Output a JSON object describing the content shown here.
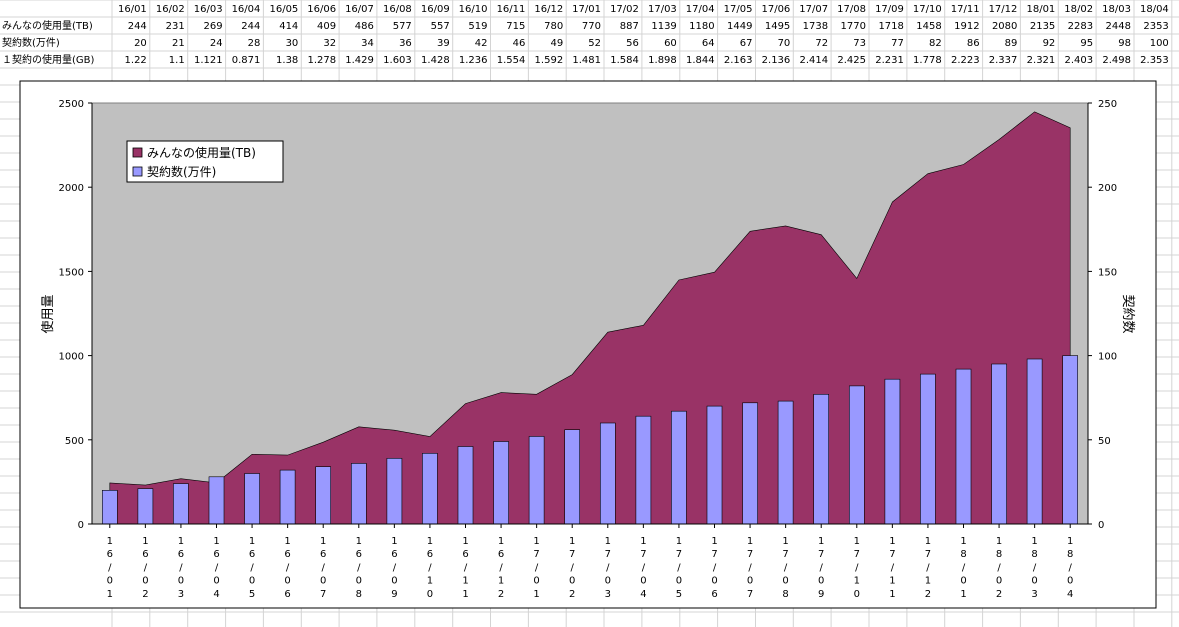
{
  "sheet": {
    "row_labels": [
      "みんなの使用量(TB)",
      "契約数(万件)",
      "１契約の使用量(GB)"
    ],
    "months": [
      "16/01",
      "16/02",
      "16/03",
      "16/04",
      "16/05",
      "16/06",
      "16/07",
      "16/08",
      "16/09",
      "16/10",
      "16/11",
      "16/12",
      "17/01",
      "17/02",
      "17/03",
      "17/04",
      "17/05",
      "17/06",
      "17/07",
      "17/08",
      "17/09",
      "17/10",
      "17/11",
      "17/12",
      "18/01",
      "18/02",
      "18/03",
      "18/04"
    ],
    "usage_tb": [
      "244",
      "231",
      "269",
      "244",
      "414",
      "409",
      "486",
      "577",
      "557",
      "519",
      "715",
      "780",
      "770",
      "887",
      "1139",
      "1180",
      "1449",
      "1495",
      "1738",
      "1770",
      "1718",
      "1458",
      "1912",
      "2080",
      "2135",
      "2283",
      "2448",
      "2353"
    ],
    "contracts": [
      "20",
      "21",
      "24",
      "28",
      "30",
      "32",
      "34",
      "36",
      "39",
      "42",
      "46",
      "49",
      "52",
      "56",
      "60",
      "64",
      "67",
      "70",
      "72",
      "73",
      "77",
      "82",
      "86",
      "89",
      "92",
      "95",
      "98",
      "100"
    ],
    "per_contract_gb": [
      "1.22",
      "1.1",
      "1.121",
      "0.871",
      "1.38",
      "1.278",
      "1.429",
      "1.603",
      "1.428",
      "1.236",
      "1.554",
      "1.592",
      "1.481",
      "1.584",
      "1.898",
      "1.844",
      "2.163",
      "2.136",
      "2.414",
      "2.425",
      "2.231",
      "1.778",
      "2.223",
      "2.337",
      "2.321",
      "2.403",
      "2.498",
      "2.353"
    ]
  },
  "chart_data": {
    "type": "area",
    "categories": [
      "16/01",
      "16/02",
      "16/03",
      "16/04",
      "16/05",
      "16/06",
      "16/07",
      "16/08",
      "16/09",
      "16/10",
      "16/11",
      "16/12",
      "17/01",
      "17/02",
      "17/03",
      "17/04",
      "17/05",
      "17/06",
      "17/07",
      "17/08",
      "17/09",
      "17/10",
      "17/11",
      "17/12",
      "18/01",
      "18/02",
      "18/03",
      "18/04"
    ],
    "series": [
      {
        "name": "みんなの使用量(TB)",
        "type": "area",
        "axis": "left",
        "color": "#993366",
        "values": [
          244,
          231,
          269,
          244,
          414,
          409,
          486,
          577,
          557,
          519,
          715,
          780,
          770,
          887,
          1139,
          1180,
          1449,
          1495,
          1738,
          1770,
          1718,
          1458,
          1912,
          2080,
          2135,
          2283,
          2448,
          2353
        ]
      },
      {
        "name": "契約数(万件)",
        "type": "bar",
        "axis": "right",
        "color": "#9999ff",
        "values": [
          20,
          21,
          24,
          28,
          30,
          32,
          34,
          36,
          39,
          42,
          46,
          49,
          52,
          56,
          60,
          64,
          67,
          70,
          72,
          73,
          77,
          82,
          86,
          89,
          92,
          95,
          98,
          100
        ]
      }
    ],
    "ylabel": "使用量",
    "y2label": "契約数",
    "ylim": [
      0,
      2500
    ],
    "y2lim": [
      0,
      250
    ],
    "yticks": [
      "0",
      "500",
      "1000",
      "1500",
      "2000",
      "2500"
    ],
    "y2ticks": [
      "0",
      "50",
      "100",
      "150",
      "200",
      "250"
    ],
    "legend": "top-left",
    "plot_background": "#c0c0c0"
  }
}
